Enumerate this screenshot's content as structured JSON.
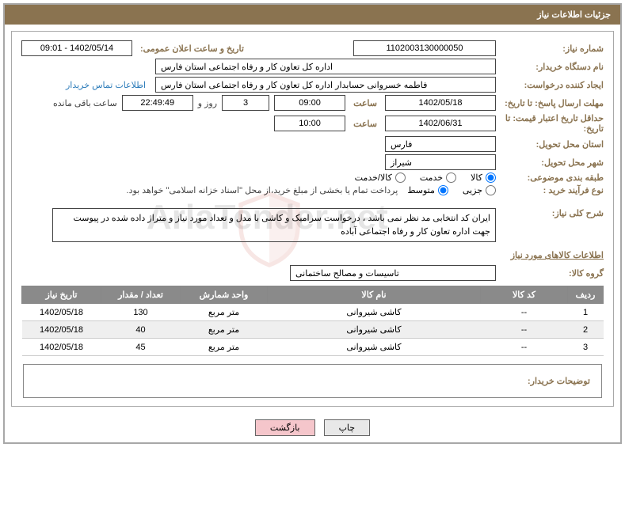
{
  "header": {
    "title": "جزئیات اطلاعات نیاز"
  },
  "fields": {
    "need_no_label": "شماره نیاز:",
    "need_no": "1102003130000050",
    "announce_label": "تاریخ و ساعت اعلان عمومی:",
    "announce_value": "1402/05/14 - 09:01",
    "buyer_org_label": "نام دستگاه خریدار:",
    "buyer_org": "اداره کل تعاون  کار و رفاه اجتماعی استان فارس",
    "requester_label": "ایجاد کننده درخواست:",
    "requester": "فاطمه خسروانی حسابدار اداره کل تعاون  کار و رفاه اجتماعی استان فارس",
    "contact_link": "اطلاعات تماس خریدار",
    "deadline_label": "مهلت ارسال پاسخ: تا تاریخ:",
    "deadline_date": "1402/05/18",
    "time_word": "ساعت",
    "deadline_time": "09:00",
    "days_count": "3",
    "days_and": "روز و",
    "countdown": "22:49:49",
    "remain": "ساعت باقی مانده",
    "validity_label": "حداقل تاریخ اعتبار قیمت: تا تاریخ:",
    "validity_date": "1402/06/31",
    "validity_time": "10:00",
    "province_label": "استان محل تحویل:",
    "province": "فارس",
    "city_label": "شهر محل تحویل:",
    "city": "شیراز",
    "category_label": "طبقه بندی موضوعی:",
    "cat_goods": "کالا",
    "cat_service": "خدمت",
    "cat_both": "کالا/خدمت",
    "process_label": "نوع فرآیند خرید :",
    "proc_small": "جزیی",
    "proc_medium": "متوسط",
    "process_note": "پرداخت تمام یا بخشی از مبلغ خرید،از محل \"اسناد خزانه اسلامی\" خواهد بود.",
    "overview_label": "شرح کلی نیاز:",
    "overview_text": "ایران کد انتخابی مد نظر نمی باشد ، درخواست سرامیک و کاشی با مدل و تعداد مورد نیاز و متراژ داده شده در پیوست جهت اداره تعاون کار و رفاه اجتماعی آباده",
    "items_title": "اطلاعات کالاهای مورد نیاز",
    "group_label": "گروه کالا:",
    "group_value": "تاسیسات و مصالح ساختمانی",
    "buyer_notes_label": "توضیحات خریدار:"
  },
  "table": {
    "headers": {
      "row": "ردیف",
      "code": "کد کالا",
      "name": "نام کالا",
      "unit": "واحد شمارش",
      "qty": "تعداد / مقدار",
      "date": "تاریخ نیاز"
    },
    "rows": [
      {
        "n": "1",
        "code": "--",
        "name": "کاشی شیروانی",
        "unit": "متر مربع",
        "qty": "130",
        "date": "1402/05/18"
      },
      {
        "n": "2",
        "code": "--",
        "name": "کاشی شیروانی",
        "unit": "متر مربع",
        "qty": "40",
        "date": "1402/05/18"
      },
      {
        "n": "3",
        "code": "--",
        "name": "کاشی شیروانی",
        "unit": "متر مربع",
        "qty": "45",
        "date": "1402/05/18"
      }
    ]
  },
  "buttons": {
    "print": "چاپ",
    "back": "بازگشت"
  },
  "colors": {
    "header_bg": "#8a7350",
    "label_color": "#8a7350",
    "th_bg": "#8a8a8a",
    "link_color": "#2b7bb9",
    "btn_back_bg": "#f5c6cb"
  }
}
